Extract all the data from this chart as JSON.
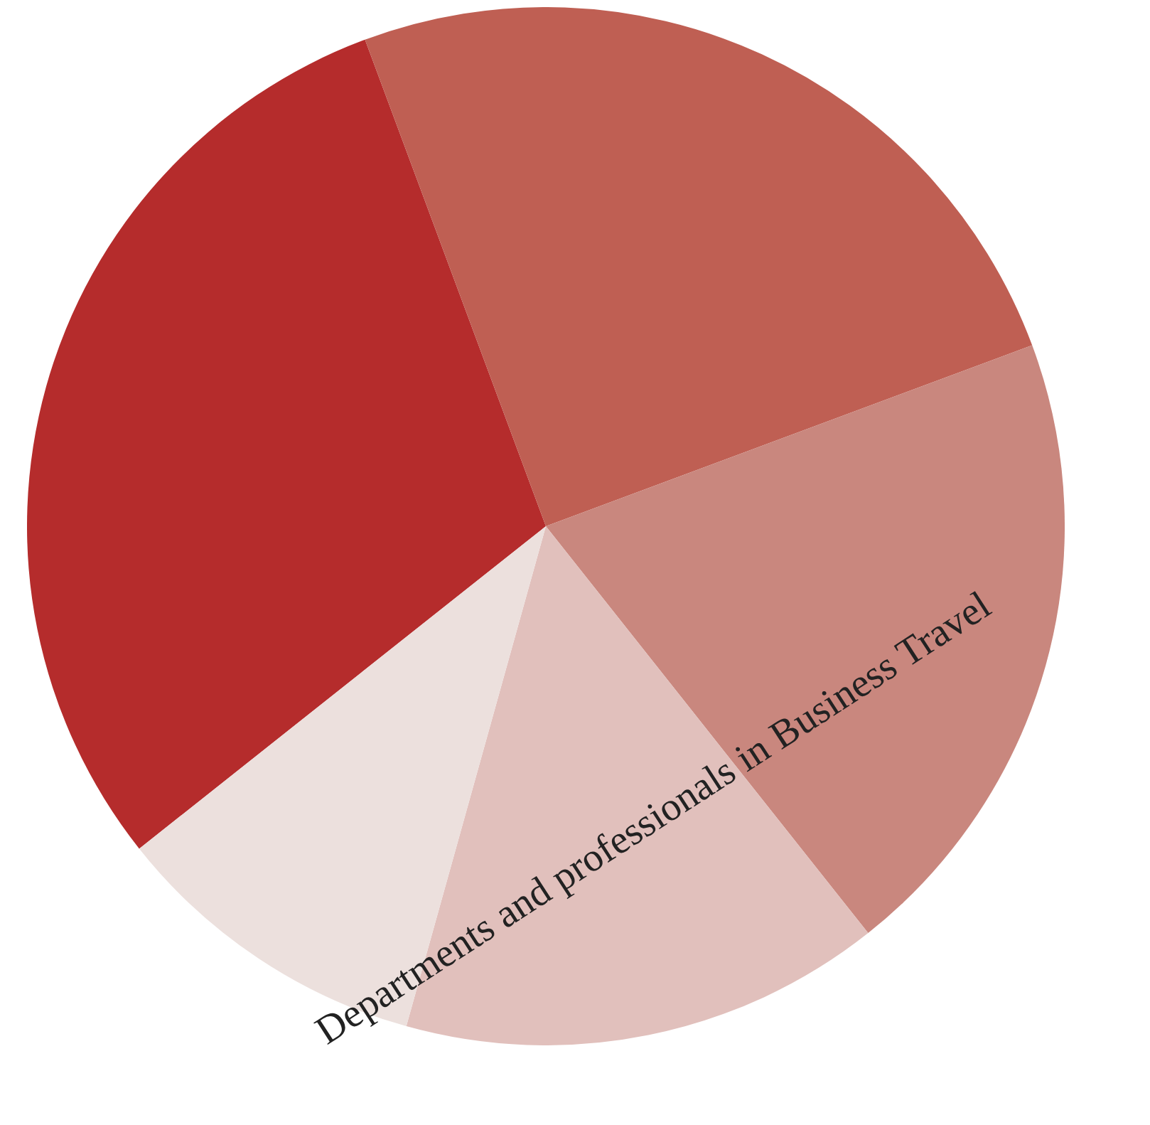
{
  "chart_data": {
    "type": "pie",
    "title": "Departments and professionals in Business Travel",
    "categories": [
      null,
      null,
      null,
      null,
      null
    ],
    "values": [
      30,
      25,
      20,
      15,
      10
    ],
    "colors": [
      "#b52c2c",
      "#bf5f53",
      "#c9877e",
      "#e1c0bc",
      "#ece0dd"
    ],
    "legend": false
  }
}
